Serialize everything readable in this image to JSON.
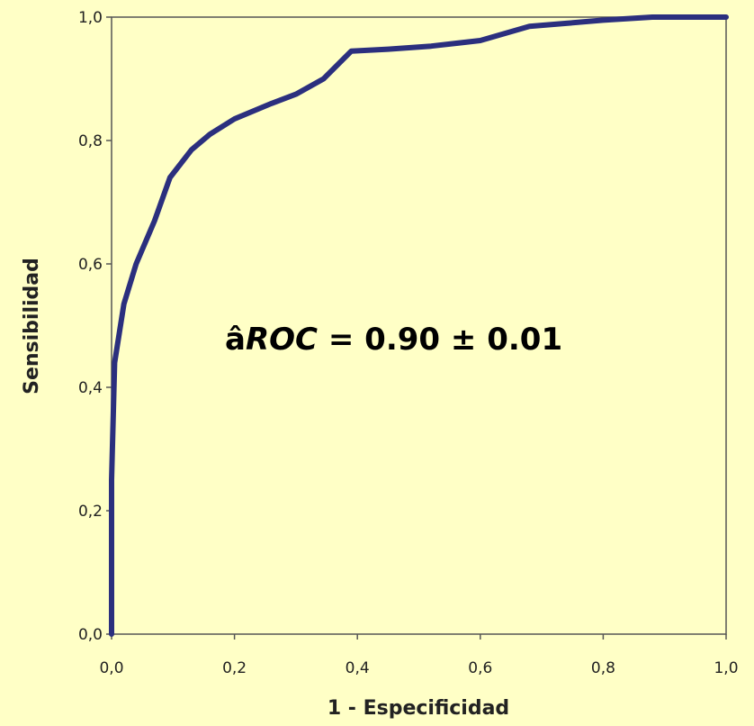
{
  "chart_data": {
    "type": "line",
    "title": "",
    "xlabel": "1 - Especificidad",
    "ylabel": "Sensibilidad",
    "xlim": [
      0,
      1
    ],
    "ylim": [
      0,
      1
    ],
    "x_ticks": [
      "0,0",
      "0,2",
      "0,4",
      "0,6",
      "0,8",
      "1,0"
    ],
    "y_ticks": [
      "0,0",
      "0,2",
      "0,4",
      "0,6",
      "0,8",
      "1,0"
    ],
    "grid": false,
    "annotation": {
      "prefix": "â",
      "label": "ROC",
      "value": " = 0.90 ± 0.01"
    },
    "series": [
      {
        "color": "#2b2f7e",
        "points": [
          [
            0.0,
            0.0
          ],
          [
            0.0,
            0.25
          ],
          [
            0.005,
            0.44
          ],
          [
            0.02,
            0.535
          ],
          [
            0.04,
            0.6
          ],
          [
            0.07,
            0.67
          ],
          [
            0.095,
            0.74
          ],
          [
            0.13,
            0.785
          ],
          [
            0.16,
            0.81
          ],
          [
            0.2,
            0.835
          ],
          [
            0.26,
            0.86
          ],
          [
            0.3,
            0.875
          ],
          [
            0.345,
            0.9
          ],
          [
            0.39,
            0.945
          ],
          [
            0.45,
            0.948
          ],
          [
            0.52,
            0.953
          ],
          [
            0.6,
            0.962
          ],
          [
            0.68,
            0.985
          ],
          [
            0.74,
            0.99
          ],
          [
            0.8,
            0.995
          ],
          [
            0.88,
            1.0
          ],
          [
            1.0,
            1.0
          ]
        ]
      }
    ],
    "colors": {
      "background": "#ffffc6",
      "plot_area": "#ffffc6",
      "frame": "#555555",
      "curve": "#2b2f7e"
    }
  }
}
